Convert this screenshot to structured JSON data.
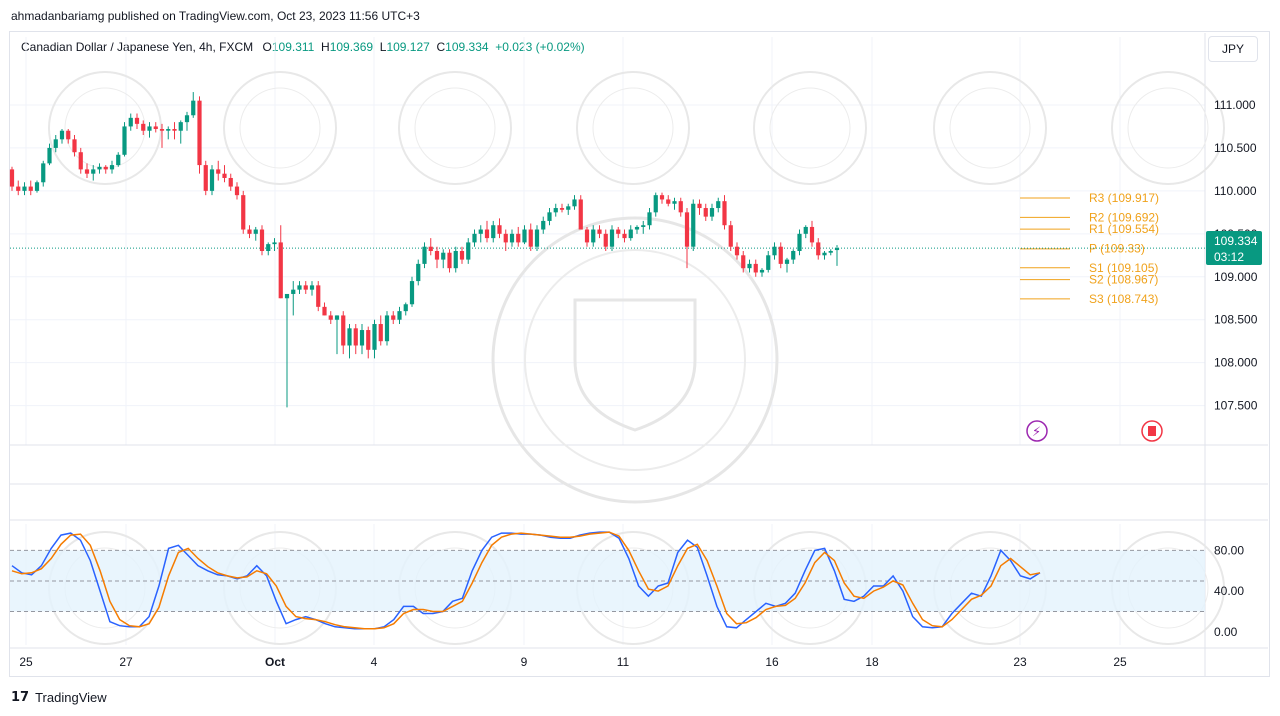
{
  "header": {
    "publish_line": "ahmadanbariamg published on TradingView.com, Oct 23, 2023 11:56 UTC+3"
  },
  "legend": {
    "symbol": "Canadian Dollar / Japanese Yen, 4h, FXCM",
    "open_label": "O",
    "open": "109.311",
    "high_label": "H",
    "high": "109.369",
    "low_label": "L",
    "low": "109.127",
    "close_label": "C",
    "close": "109.334",
    "change": "+0.023 (+0.02%)"
  },
  "currency_button": "JPY",
  "price_tag": {
    "price": "109.334",
    "countdown": "03:12"
  },
  "footer": {
    "brand": "TradingView"
  },
  "colors": {
    "up": "#089981",
    "down": "#f23645",
    "pivot": "#f0a21b",
    "stoch_k": "#2962ff",
    "stoch_d": "#f57c00",
    "band": "#e3f2fd"
  },
  "chart_data": [
    {
      "type": "candlestick",
      "title": "Canadian Dollar / Japanese Yen, 4h, FXCM",
      "x_tick_labels": [
        "25",
        "27",
        "Oct",
        "4",
        "9",
        "11",
        "16",
        "18",
        "23",
        "25"
      ],
      "y_tick_labels": [
        "111.000",
        "110.500",
        "110.000",
        "109.500",
        "109.000",
        "108.500",
        "108.000",
        "107.500"
      ],
      "ylim": [
        107.1,
        111.5
      ],
      "last_price": 109.334,
      "pivot_levels": [
        {
          "label": "R3",
          "value": 109.917
        },
        {
          "label": "R2",
          "value": 109.692
        },
        {
          "label": "R1",
          "value": 109.554
        },
        {
          "label": "P",
          "value": 109.33
        },
        {
          "label": "S1",
          "value": 109.105
        },
        {
          "label": "S2",
          "value": 108.967
        },
        {
          "label": "S3",
          "value": 108.743
        }
      ],
      "candles": [
        [
          110.25,
          110.28,
          110.0,
          110.05
        ],
        [
          110.05,
          110.12,
          109.95,
          110.0
        ],
        [
          110.0,
          110.1,
          109.95,
          110.05
        ],
        [
          110.05,
          110.12,
          109.95,
          110.0
        ],
        [
          110.0,
          110.12,
          109.98,
          110.1
        ],
        [
          110.1,
          110.35,
          110.05,
          110.32
        ],
        [
          110.32,
          110.55,
          110.3,
          110.5
        ],
        [
          110.5,
          110.65,
          110.45,
          110.6
        ],
        [
          110.6,
          110.72,
          110.55,
          110.7
        ],
        [
          110.7,
          110.72,
          110.55,
          110.6
        ],
        [
          110.6,
          110.65,
          110.4,
          110.45
        ],
        [
          110.45,
          110.5,
          110.2,
          110.25
        ],
        [
          110.25,
          110.32,
          110.15,
          110.2
        ],
        [
          110.2,
          110.3,
          110.12,
          110.25
        ],
        [
          110.25,
          110.32,
          110.2,
          110.28
        ],
        [
          110.28,
          110.3,
          110.2,
          110.25
        ],
        [
          110.25,
          110.35,
          110.2,
          110.3
        ],
        [
          110.3,
          110.45,
          110.28,
          110.42
        ],
        [
          110.42,
          110.8,
          110.4,
          110.75
        ],
        [
          110.75,
          110.9,
          110.7,
          110.85
        ],
        [
          110.85,
          110.9,
          110.72,
          110.78
        ],
        [
          110.78,
          110.82,
          110.65,
          110.7
        ],
        [
          110.7,
          110.8,
          110.62,
          110.75
        ],
        [
          110.75,
          110.8,
          110.68,
          110.72
        ],
        [
          110.72,
          110.78,
          110.5,
          110.7
        ],
        [
          110.7,
          110.75,
          110.6,
          110.72
        ],
        [
          110.72,
          110.8,
          110.6,
          110.7
        ],
        [
          110.7,
          110.82,
          110.55,
          110.8
        ],
        [
          110.8,
          110.92,
          110.7,
          110.88
        ],
        [
          110.88,
          111.15,
          110.85,
          111.05
        ],
        [
          111.05,
          111.1,
          110.2,
          110.3
        ],
        [
          110.3,
          110.35,
          109.95,
          110.0
        ],
        [
          110.0,
          110.3,
          109.95,
          110.25
        ],
        [
          110.25,
          110.35,
          110.12,
          110.2
        ],
        [
          110.2,
          110.3,
          110.1,
          110.15
        ],
        [
          110.15,
          110.2,
          110.0,
          110.05
        ],
        [
          110.05,
          110.1,
          109.9,
          109.95
        ],
        [
          109.95,
          110.0,
          109.5,
          109.55
        ],
        [
          109.55,
          109.6,
          109.45,
          109.5
        ],
        [
          109.5,
          109.58,
          109.42,
          109.55
        ],
        [
          109.55,
          109.6,
          109.25,
          109.3
        ],
        [
          109.3,
          109.4,
          109.25,
          109.38
        ],
        [
          109.38,
          109.45,
          109.3,
          109.4
        ],
        [
          109.4,
          109.6,
          108.75,
          108.75
        ],
        [
          108.75,
          108.8,
          107.48,
          108.8
        ],
        [
          108.8,
          108.95,
          108.55,
          108.85
        ],
        [
          108.85,
          108.95,
          108.8,
          108.9
        ],
        [
          108.9,
          108.95,
          108.8,
          108.85
        ],
        [
          108.85,
          108.95,
          108.78,
          108.9
        ],
        [
          108.9,
          108.95,
          108.6,
          108.65
        ],
        [
          108.65,
          108.7,
          108.55,
          108.55
        ],
        [
          108.55,
          108.6,
          108.45,
          108.5
        ],
        [
          108.5,
          108.55,
          108.1,
          108.55
        ],
        [
          108.55,
          108.6,
          108.1,
          108.2
        ],
        [
          108.2,
          108.45,
          108.05,
          108.4
        ],
        [
          108.4,
          108.45,
          108.1,
          108.2
        ],
        [
          108.2,
          108.45,
          108.1,
          108.38
        ],
        [
          108.38,
          108.42,
          108.05,
          108.15
        ],
        [
          108.15,
          108.5,
          108.05,
          108.45
        ],
        [
          108.45,
          108.55,
          108.2,
          108.25
        ],
        [
          108.25,
          108.6,
          108.2,
          108.55
        ],
        [
          108.55,
          108.6,
          108.45,
          108.5
        ],
        [
          108.5,
          108.65,
          108.45,
          108.6
        ],
        [
          108.6,
          108.7,
          108.55,
          108.68
        ],
        [
          108.68,
          109.0,
          108.65,
          108.95
        ],
        [
          108.95,
          109.2,
          108.9,
          109.15
        ],
        [
          109.15,
          109.4,
          109.1,
          109.35
        ],
        [
          109.35,
          109.45,
          109.25,
          109.3
        ],
        [
          109.3,
          109.35,
          109.1,
          109.2
        ],
        [
          109.2,
          109.32,
          109.1,
          109.28
        ],
        [
          109.28,
          109.32,
          109.05,
          109.1
        ],
        [
          109.1,
          109.35,
          109.05,
          109.3
        ],
        [
          109.3,
          109.35,
          109.15,
          109.2
        ],
        [
          109.2,
          109.45,
          109.15,
          109.4
        ],
        [
          109.4,
          109.55,
          109.35,
          109.5
        ],
        [
          109.5,
          109.6,
          109.4,
          109.55
        ],
        [
          109.55,
          109.65,
          109.4,
          109.45
        ],
        [
          109.45,
          109.65,
          109.4,
          109.6
        ],
        [
          109.6,
          109.68,
          109.45,
          109.5
        ],
        [
          109.5,
          109.55,
          109.3,
          109.4
        ],
        [
          109.4,
          109.55,
          109.35,
          109.5
        ],
        [
          109.5,
          109.58,
          109.35,
          109.4
        ],
        [
          109.4,
          109.6,
          109.38,
          109.55
        ],
        [
          109.55,
          109.62,
          109.3,
          109.35
        ],
        [
          109.35,
          109.6,
          109.3,
          109.55
        ],
        [
          109.55,
          109.7,
          109.5,
          109.65
        ],
        [
          109.65,
          109.8,
          109.6,
          109.75
        ],
        [
          109.75,
          109.85,
          109.7,
          109.8
        ],
        [
          109.8,
          109.85,
          109.75,
          109.78
        ],
        [
          109.78,
          109.85,
          109.72,
          109.82
        ],
        [
          109.82,
          109.95,
          109.78,
          109.9
        ],
        [
          109.9,
          109.95,
          109.55,
          109.55
        ],
        [
          109.55,
          109.58,
          109.35,
          109.4
        ],
        [
          109.4,
          109.6,
          109.35,
          109.55
        ],
        [
          109.55,
          109.6,
          109.45,
          109.5
        ],
        [
          109.5,
          109.55,
          109.3,
          109.35
        ],
        [
          109.35,
          109.6,
          109.3,
          109.55
        ],
        [
          109.55,
          109.58,
          109.45,
          109.5
        ],
        [
          109.5,
          109.55,
          109.4,
          109.45
        ],
        [
          109.45,
          109.6,
          109.42,
          109.55
        ],
        [
          109.55,
          109.6,
          109.5,
          109.58
        ],
        [
          109.58,
          109.65,
          109.5,
          109.6
        ],
        [
          109.6,
          109.8,
          109.55,
          109.75
        ],
        [
          109.75,
          109.98,
          109.7,
          109.95
        ],
        [
          109.95,
          109.98,
          109.85,
          109.9
        ],
        [
          109.9,
          109.95,
          109.82,
          109.85
        ],
        [
          109.85,
          109.92,
          109.78,
          109.88
        ],
        [
          109.88,
          109.92,
          109.7,
          109.75
        ],
        [
          109.75,
          109.8,
          109.1,
          109.35
        ],
        [
          109.35,
          109.9,
          109.3,
          109.85
        ],
        [
          109.85,
          109.9,
          109.72,
          109.8
        ],
        [
          109.8,
          109.85,
          109.65,
          109.7
        ],
        [
          109.7,
          109.85,
          109.65,
          109.8
        ],
        [
          109.8,
          109.92,
          109.75,
          109.88
        ],
        [
          109.88,
          109.95,
          109.55,
          109.6
        ],
        [
          109.6,
          109.65,
          109.3,
          109.35
        ],
        [
          109.35,
          109.4,
          109.2,
          109.25
        ],
        [
          109.25,
          109.3,
          109.05,
          109.1
        ],
        [
          109.1,
          109.2,
          109.05,
          109.15
        ],
        [
          109.15,
          109.2,
          109.0,
          109.05
        ],
        [
          109.05,
          109.1,
          109.0,
          109.08
        ],
        [
          109.08,
          109.3,
          109.05,
          109.25
        ],
        [
          109.25,
          109.4,
          109.2,
          109.35
        ],
        [
          109.35,
          109.4,
          109.1,
          109.15
        ],
        [
          109.15,
          109.22,
          109.05,
          109.2
        ],
        [
          109.2,
          109.32,
          109.15,
          109.3
        ],
        [
          109.3,
          109.55,
          109.25,
          109.5
        ],
        [
          109.5,
          109.6,
          109.45,
          109.58
        ],
        [
          109.58,
          109.65,
          109.35,
          109.4
        ],
        [
          109.4,
          109.45,
          109.2,
          109.25
        ],
        [
          109.25,
          109.3,
          109.2,
          109.28
        ],
        [
          109.28,
          109.32,
          109.25,
          109.3
        ],
        [
          109.311,
          109.369,
          109.127,
          109.334
        ]
      ]
    },
    {
      "type": "line",
      "y_tick_labels": [
        "80.00",
        "40.00",
        "0.00"
      ],
      "ylim": [
        -8,
        102
      ],
      "band": [
        20,
        80
      ],
      "dashed_levels": [
        80,
        50,
        20
      ],
      "series": [
        {
          "color": "#2962ff",
          "values": [
            65,
            58,
            56,
            65,
            82,
            95,
            97,
            90,
            70,
            40,
            10,
            6,
            5,
            5,
            15,
            45,
            82,
            85,
            75,
            65,
            60,
            56,
            55,
            52,
            55,
            65,
            55,
            30,
            8,
            12,
            15,
            12,
            8,
            5,
            4,
            3,
            3,
            3,
            5,
            12,
            25,
            25,
            18,
            18,
            20,
            30,
            33,
            60,
            80,
            93,
            97,
            97,
            96,
            96,
            95,
            93,
            92,
            92,
            95,
            97,
            98,
            98,
            92,
            72,
            45,
            35,
            45,
            48,
            78,
            90,
            83,
            55,
            25,
            5,
            4,
            12,
            20,
            28,
            25,
            28,
            38,
            60,
            80,
            82,
            60,
            32,
            30,
            35,
            45,
            45,
            55,
            40,
            15,
            5,
            4,
            5,
            18,
            28,
            38,
            35,
            55,
            80,
            70,
            55,
            52,
            58
          ]
        },
        {
          "color": "#f57c00",
          "values": [
            60,
            57,
            58,
            62,
            72,
            86,
            95,
            96,
            85,
            60,
            30,
            12,
            6,
            5,
            8,
            24,
            55,
            78,
            82,
            72,
            64,
            58,
            55,
            53,
            54,
            60,
            57,
            45,
            25,
            15,
            13,
            12,
            10,
            7,
            5,
            4,
            3,
            3,
            4,
            8,
            18,
            22,
            22,
            20,
            20,
            25,
            30,
            48,
            68,
            85,
            93,
            96,
            97,
            96,
            95,
            94,
            93,
            93,
            94,
            96,
            97,
            98,
            94,
            80,
            60,
            42,
            40,
            45,
            65,
            82,
            86,
            70,
            45,
            18,
            8,
            9,
            14,
            22,
            25,
            26,
            33,
            48,
            68,
            78,
            70,
            48,
            35,
            33,
            40,
            44,
            50,
            46,
            28,
            12,
            6,
            5,
            12,
            22,
            32,
            36,
            45,
            65,
            72,
            64,
            56,
            58
          ]
        }
      ]
    }
  ]
}
